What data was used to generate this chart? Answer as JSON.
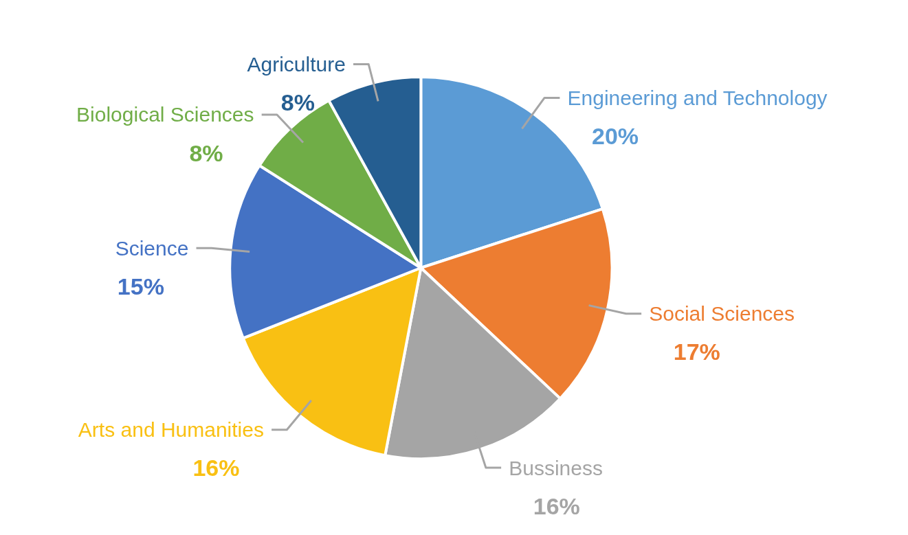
{
  "chart_data": {
    "type": "pie",
    "categories": [
      "Engineering and Technology",
      "Social Sciences",
      "Bussiness",
      "Arts and Humanities",
      "Science",
      "Biological Sciences",
      "Agriculture"
    ],
    "values": [
      20,
      17,
      16,
      16,
      15,
      8,
      8
    ],
    "colors": [
      "#5b9bd5",
      "#ed7d31",
      "#a5a5a5",
      "#f9c013",
      "#4472c4",
      "#70ad47",
      "#255e91"
    ],
    "value_labels": [
      "20%",
      "17%",
      "16%",
      "16%",
      "15%",
      "8%",
      "8%"
    ]
  }
}
